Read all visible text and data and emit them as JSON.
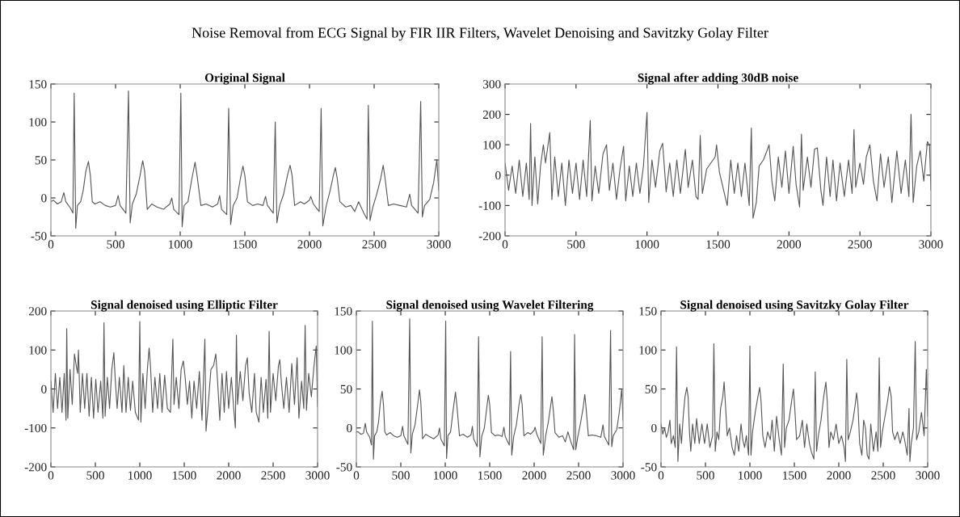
{
  "chart_data": [
    {
      "type": "line",
      "title": "Original Signal",
      "annotations": [
        "Noise Removal from ECG Signal by FIR IIR Filters, Wavelet Denoising and Savitzky Golay Filter"
      ],
      "xlim": [
        0,
        3000
      ],
      "ylim": [
        -50,
        150
      ],
      "xticks": [
        0,
        500,
        1000,
        1500,
        2000,
        2500,
        3000
      ],
      "yticks": [
        -50,
        0,
        50,
        100,
        150
      ],
      "series": [
        {
          "color": "#555555",
          "x": [
            0,
            20,
            50,
            80,
            100,
            115,
            150,
            170,
            180,
            192,
            205,
            230,
            250,
            270,
            290,
            305,
            320,
            340,
            380,
            420,
            460,
            500,
            520,
            535,
            580,
            600,
            613,
            630,
            660,
            690,
            710,
            725,
            745,
            780,
            820,
            870,
            920,
            935,
            950,
            990,
            1005,
            1015,
            1030,
            1060,
            1090,
            1115,
            1130,
            1160,
            1200,
            1250,
            1290,
            1305,
            1320,
            1360,
            1375,
            1390,
            1410,
            1440,
            1465,
            1485,
            1500,
            1520,
            1560,
            1600,
            1640,
            1660,
            1675,
            1720,
            1735,
            1748,
            1770,
            1800,
            1830,
            1850,
            1865,
            1885,
            1930,
            1960,
            2000,
            2010,
            2030,
            2075,
            2090,
            2103,
            2130,
            2160,
            2185,
            2200,
            2215,
            2235,
            2280,
            2320,
            2350,
            2380,
            2420,
            2445,
            2455,
            2468,
            2490,
            2520,
            2550,
            2570,
            2585,
            2610,
            2650,
            2700,
            2750,
            2775,
            2790,
            2840,
            2860,
            2873,
            2890,
            2930,
            2960,
            2985,
            3000
          ],
          "values": [
            -5,
            -3,
            -8,
            -5,
            7,
            -5,
            -13,
            -20,
            138,
            -40,
            -10,
            -5,
            10,
            35,
            48,
            30,
            -5,
            -8,
            -5,
            -10,
            -12,
            -10,
            3,
            -10,
            -20,
            141,
            -33,
            -8,
            5,
            30,
            49,
            35,
            -15,
            -8,
            -12,
            -15,
            -8,
            0,
            -15,
            -22,
            138,
            -38,
            -10,
            -5,
            25,
            47,
            30,
            -10,
            -8,
            -12,
            -8,
            3,
            -15,
            -22,
            118,
            -35,
            -10,
            0,
            25,
            42,
            30,
            -5,
            -10,
            -8,
            -10,
            2,
            -10,
            -20,
            100,
            -33,
            -10,
            5,
            30,
            43,
            30,
            -10,
            -5,
            -8,
            -3,
            2,
            -8,
            -18,
            118,
            -37,
            -10,
            10,
            30,
            40,
            25,
            -5,
            -12,
            -10,
            -18,
            -5,
            -20,
            -28,
            122,
            -30,
            -12,
            5,
            25,
            43,
            25,
            -10,
            -8,
            -10,
            -12,
            5,
            -10,
            -20,
            127,
            -25,
            -10,
            -2,
            20,
            50,
            10
          ]
        }
      ]
    },
    {
      "type": "line",
      "title": "Signal after adding 30dB noise",
      "xlim": [
        0,
        3000
      ],
      "ylim": [
        -200,
        300
      ],
      "xticks": [
        0,
        500,
        1000,
        1500,
        2000,
        2500,
        3000
      ],
      "yticks": [
        -200,
        -100,
        0,
        100,
        200,
        300
      ],
      "series": [
        {
          "color": "#555555",
          "x": [
            0,
            25,
            50,
            75,
            100,
            125,
            150,
            170,
            180,
            190,
            210,
            230,
            250,
            270,
            285,
            300,
            315,
            330,
            350,
            375,
            400,
            425,
            450,
            475,
            500,
            525,
            550,
            575,
            600,
            612,
            635,
            660,
            690,
            715,
            735,
            760,
            785,
            810,
            835,
            850,
            875,
            900,
            925,
            950,
            975,
            1000,
            1012,
            1035,
            1060,
            1090,
            1110,
            1135,
            1160,
            1185,
            1210,
            1235,
            1270,
            1290,
            1320,
            1345,
            1360,
            1375,
            1390,
            1420,
            1450,
            1480,
            1490,
            1510,
            1540,
            1565,
            1590,
            1615,
            1640,
            1665,
            1690,
            1720,
            1735,
            1747,
            1770,
            1790,
            1820,
            1845,
            1860,
            1880,
            1900,
            1925,
            1950,
            1975,
            2000,
            2030,
            2050,
            2075,
            2088,
            2100,
            2130,
            2155,
            2180,
            2200,
            2225,
            2240,
            2265,
            2290,
            2310,
            2335,
            2360,
            2390,
            2420,
            2445,
            2458,
            2470,
            2500,
            2525,
            2545,
            2570,
            2595,
            2620,
            2645,
            2670,
            2700,
            2725,
            2760,
            2790,
            2820,
            2845,
            2860,
            2875,
            2900,
            2925,
            2950,
            2975,
            2990,
            3000
          ],
          "values": [
            40,
            -50,
            30,
            -60,
            50,
            -70,
            40,
            -80,
            170,
            -100,
            60,
            -95,
            30,
            100,
            40,
            90,
            140,
            -80,
            60,
            -70,
            40,
            -100,
            50,
            -60,
            40,
            -80,
            50,
            -70,
            180,
            -85,
            30,
            -60,
            70,
            100,
            -50,
            40,
            -80,
            20,
            95,
            -85,
            30,
            -70,
            40,
            -60,
            30,
            207,
            -90,
            50,
            -40,
            80,
            105,
            -55,
            40,
            -70,
            50,
            -60,
            85,
            -40,
            50,
            -70,
            -80,
            130,
            -60,
            20,
            40,
            60,
            100,
            10,
            -50,
            -100,
            50,
            -60,
            40,
            -70,
            40,
            -100,
            155,
            -142,
            -90,
            30,
            50,
            80,
            100,
            -20,
            -85,
            60,
            -40,
            80,
            -60,
            95,
            -30,
            -105,
            135,
            -50,
            60,
            -40,
            85,
            90,
            -50,
            -100,
            60,
            -70,
            50,
            -85,
            40,
            -70,
            50,
            -60,
            150,
            -40,
            40,
            -30,
            60,
            100,
            -20,
            -85,
            70,
            -40,
            60,
            -90,
            80,
            -60,
            50,
            -70,
            200,
            -90,
            30,
            80,
            -20,
            110,
            100,
            -50
          ]
        }
      ]
    },
    {
      "type": "line",
      "title": "Signal denoised using Elliptic Filter",
      "xlim": [
        0,
        3000
      ],
      "ylim": [
        -200,
        200
      ],
      "xticks": [
        0,
        500,
        1000,
        1500,
        2000,
        2500,
        3000
      ],
      "yticks": [
        -200,
        -100,
        0,
        100,
        200
      ],
      "series": [
        {
          "color": "#555555",
          "x": [
            0,
            25,
            50,
            75,
            100,
            125,
            150,
            170,
            178,
            190,
            215,
            240,
            265,
            285,
            300,
            310,
            330,
            355,
            380,
            405,
            430,
            455,
            480,
            505,
            530,
            560,
            585,
            597,
            610,
            635,
            660,
            685,
            708,
            725,
            745,
            770,
            800,
            820,
            845,
            870,
            895,
            920,
            950,
            985,
            1000,
            1012,
            1035,
            1060,
            1085,
            1105,
            1120,
            1145,
            1170,
            1200,
            1225,
            1250,
            1280,
            1310,
            1345,
            1372,
            1385,
            1410,
            1440,
            1465,
            1490,
            1510,
            1535,
            1560,
            1585,
            1610,
            1640,
            1670,
            1700,
            1732,
            1745,
            1770,
            1800,
            1830,
            1855,
            1875,
            1900,
            1925,
            1950,
            1975,
            2000,
            2030,
            2060,
            2075,
            2087,
            2100,
            2130,
            2160,
            2190,
            2210,
            2230,
            2260,
            2290,
            2310,
            2340,
            2365,
            2390,
            2420,
            2440,
            2455,
            2470,
            2500,
            2530,
            2560,
            2575,
            2595,
            2620,
            2650,
            2680,
            2710,
            2740,
            2770,
            2790,
            2820,
            2845,
            2860,
            2875,
            2900,
            2930,
            2960,
            2985,
            3000
          ],
          "values": [
            20,
            -60,
            40,
            -50,
            30,
            -60,
            40,
            -80,
            155,
            -75,
            50,
            -40,
            90,
            60,
            40,
            100,
            -60,
            40,
            -50,
            40,
            -70,
            30,
            -75,
            25,
            -60,
            20,
            -75,
            170,
            -70,
            30,
            -50,
            50,
            93,
            20,
            -50,
            30,
            -60,
            60,
            -60,
            30,
            -55,
            20,
            -60,
            -80,
            173,
            -85,
            40,
            -50,
            50,
            105,
            60,
            -60,
            30,
            -50,
            40,
            -60,
            35,
            -50,
            -60,
            128,
            -40,
            30,
            -50,
            50,
            72,
            30,
            -40,
            20,
            -75,
            20,
            -50,
            45,
            -80,
            128,
            -108,
            -40,
            50,
            60,
            90,
            20,
            -80,
            40,
            -60,
            45,
            -50,
            30,
            -60,
            -100,
            138,
            -40,
            45,
            -30,
            60,
            80,
            -10,
            -60,
            40,
            -60,
            -85,
            30,
            -60,
            25,
            -75,
            148,
            -60,
            40,
            -30,
            60,
            75,
            10,
            -50,
            30,
            -60,
            65,
            -40,
            80,
            -75,
            20,
            -50,
            163,
            -55,
            40,
            -20,
            60,
            110,
            -45
          ]
        }
      ]
    },
    {
      "type": "line",
      "title": "Signal denoised using Wavelet Filtering",
      "xlim": [
        0,
        3000
      ],
      "ylim": [
        -50,
        150
      ],
      "xticks": [
        0,
        500,
        1000,
        1500,
        2000,
        2500,
        3000
      ],
      "yticks": [
        -50,
        0,
        50,
        100,
        150
      ],
      "series": [
        {
          "color": "#555555",
          "x": [
            0,
            20,
            50,
            80,
            100,
            115,
            150,
            170,
            180,
            192,
            205,
            230,
            250,
            270,
            290,
            305,
            320,
            340,
            380,
            420,
            460,
            500,
            520,
            535,
            580,
            600,
            613,
            630,
            660,
            690,
            710,
            725,
            745,
            780,
            820,
            870,
            920,
            935,
            950,
            990,
            1005,
            1015,
            1030,
            1060,
            1090,
            1115,
            1130,
            1160,
            1200,
            1250,
            1290,
            1305,
            1320,
            1360,
            1375,
            1390,
            1410,
            1440,
            1465,
            1485,
            1500,
            1520,
            1560,
            1600,
            1640,
            1660,
            1675,
            1720,
            1735,
            1748,
            1770,
            1800,
            1830,
            1850,
            1865,
            1885,
            1930,
            1960,
            2000,
            2010,
            2030,
            2075,
            2090,
            2103,
            2130,
            2160,
            2185,
            2200,
            2215,
            2235,
            2280,
            2320,
            2350,
            2380,
            2420,
            2445,
            2455,
            2468,
            2490,
            2520,
            2550,
            2570,
            2585,
            2610,
            2650,
            2700,
            2750,
            2775,
            2790,
            2840,
            2860,
            2873,
            2890,
            2930,
            2960,
            2985,
            3000
          ],
          "values": [
            -5,
            -5,
            -8,
            -7,
            6,
            -5,
            -12,
            -22,
            137,
            -40,
            -10,
            -5,
            8,
            33,
            47,
            30,
            -5,
            -9,
            -6,
            -10,
            -12,
            -10,
            2,
            -10,
            -21,
            140,
            -32,
            -8,
            4,
            30,
            49,
            33,
            -14,
            -8,
            -11,
            -14,
            -9,
            0,
            -14,
            -23,
            137,
            -39,
            -10,
            -5,
            24,
            46,
            30,
            -10,
            -8,
            -12,
            -9,
            2,
            -14,
            -24,
            117,
            -37,
            -11,
            0,
            24,
            42,
            30,
            -6,
            -10,
            -9,
            -11,
            1,
            -11,
            -22,
            98,
            -35,
            -11,
            4,
            30,
            43,
            30,
            -10,
            -6,
            -8,
            -3,
            1,
            -8,
            -20,
            117,
            -35,
            -10,
            8,
            28,
            40,
            24,
            -6,
            -12,
            -10,
            -18,
            -5,
            -20,
            -28,
            120,
            -28,
            -12,
            5,
            25,
            43,
            25,
            -10,
            -9,
            -10,
            -12,
            4,
            -11,
            -22,
            125,
            -24,
            -10,
            -2,
            22,
            50,
            10
          ]
        }
      ]
    },
    {
      "type": "line",
      "title": "Signal denoised using Savitzky Golay Filter",
      "xlim": [
        0,
        3000
      ],
      "ylim": [
        -50,
        150
      ],
      "xticks": [
        0,
        500,
        1000,
        1500,
        2000,
        2500,
        3000
      ],
      "yticks": [
        -50,
        0,
        50,
        100,
        150
      ],
      "series": [
        {
          "color": "#555555",
          "x": [
            0,
            20,
            40,
            60,
            80,
            100,
            115,
            140,
            160,
            175,
            190,
            210,
            230,
            250,
            270,
            290,
            305,
            320,
            335,
            355,
            380,
            400,
            430,
            460,
            490,
            520,
            550,
            580,
            595,
            610,
            630,
            650,
            670,
            695,
            710,
            725,
            745,
            770,
            800,
            825,
            850,
            875,
            900,
            920,
            940,
            960,
            985,
            1000,
            1012,
            1030,
            1060,
            1090,
            1110,
            1125,
            1145,
            1170,
            1200,
            1230,
            1250,
            1275,
            1300,
            1330,
            1355,
            1375,
            1390,
            1410,
            1440,
            1470,
            1490,
            1505,
            1525,
            1560,
            1590,
            1615,
            1640,
            1670,
            1690,
            1720,
            1735,
            1750,
            1770,
            1800,
            1830,
            1855,
            1870,
            1890,
            1910,
            1940,
            1970,
            2000,
            2030,
            2060,
            2075,
            2090,
            2105,
            2130,
            2160,
            2185,
            2200,
            2215,
            2235,
            2260,
            2280,
            2300,
            2320,
            2340,
            2360,
            2390,
            2420,
            2440,
            2455,
            2470,
            2490,
            2520,
            2550,
            2570,
            2590,
            2605,
            2630,
            2660,
            2690,
            2720,
            2740,
            2770,
            2790,
            2800,
            2815,
            2840,
            2860,
            2875,
            2900,
            2930,
            2960,
            2985,
            3000
          ],
          "values": [
            5,
            -8,
            0,
            -12,
            -5,
            10,
            -20,
            -10,
            -25,
            104,
            -43,
            5,
            -20,
            15,
            40,
            52,
            40,
            -5,
            -30,
            5,
            -20,
            12,
            -20,
            5,
            -20,
            5,
            -25,
            -10,
            108,
            -30,
            -5,
            -15,
            25,
            40,
            59,
            30,
            -10,
            0,
            -25,
            -35,
            -10,
            -30,
            5,
            -15,
            -25,
            -10,
            -35,
            105,
            -35,
            -5,
            20,
            40,
            52,
            35,
            -10,
            -25,
            -5,
            -15,
            10,
            -30,
            15,
            -15,
            -35,
            82,
            -25,
            0,
            10,
            35,
            50,
            25,
            -15,
            -10,
            10,
            -25,
            5,
            -20,
            -30,
            -40,
            72,
            -30,
            -10,
            10,
            40,
            59,
            35,
            -25,
            -5,
            -15,
            5,
            -20,
            -10,
            -25,
            -43,
            88,
            -15,
            -5,
            10,
            30,
            45,
            30,
            -20,
            -35,
            10,
            0,
            -35,
            -40,
            5,
            -30,
            -5,
            -30,
            90,
            -25,
            -5,
            15,
            35,
            53,
            40,
            -5,
            -15,
            -5,
            -20,
            -5,
            -15,
            -35,
            25,
            -43,
            -20,
            0,
            111,
            -15,
            -5,
            20,
            -10,
            75,
            15
          ]
        }
      ]
    }
  ]
}
